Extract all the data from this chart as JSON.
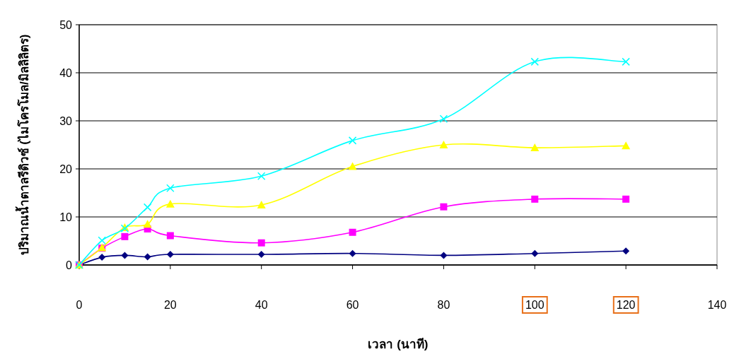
{
  "chart_data": {
    "type": "line",
    "xlabel": "เวลา (นาที)",
    "ylabel": "ปริมาณน้ำตาลรีดิวซ์ (ไมโครโมล/มิลลิลิตร)",
    "x": [
      0,
      5,
      10,
      15,
      20,
      40,
      60,
      80,
      100,
      120
    ],
    "series": [
      {
        "color": "#000080",
        "marker": "diamond",
        "values": [
          0,
          1.6,
          2.0,
          1.7,
          2.2,
          2.2,
          2.4,
          2.0,
          2.4,
          2.9
        ]
      },
      {
        "color": "#ff00ff",
        "marker": "square",
        "values": [
          0,
          3.5,
          5.9,
          7.5,
          6.1,
          4.6,
          6.8,
          12.1,
          13.7,
          13.7
        ]
      },
      {
        "color": "#ffff00",
        "marker": "triangle",
        "values": [
          0,
          3.6,
          7.8,
          8.5,
          12.7,
          12.5,
          20.5,
          25.0,
          24.4,
          24.8
        ]
      },
      {
        "color": "#00ffff",
        "marker": "cross",
        "values": [
          0,
          5.1,
          7.6,
          12.0,
          16.0,
          18.5,
          25.9,
          30.4,
          42.3,
          42.3
        ]
      }
    ],
    "xlim": [
      0,
      140
    ],
    "xticks": [
      0,
      20,
      40,
      60,
      80,
      100,
      120,
      140
    ],
    "ylim": [
      0,
      50
    ],
    "yticks": [
      0,
      10,
      20,
      30,
      40,
      50
    ],
    "grid": "y",
    "line_style": "solid"
  }
}
